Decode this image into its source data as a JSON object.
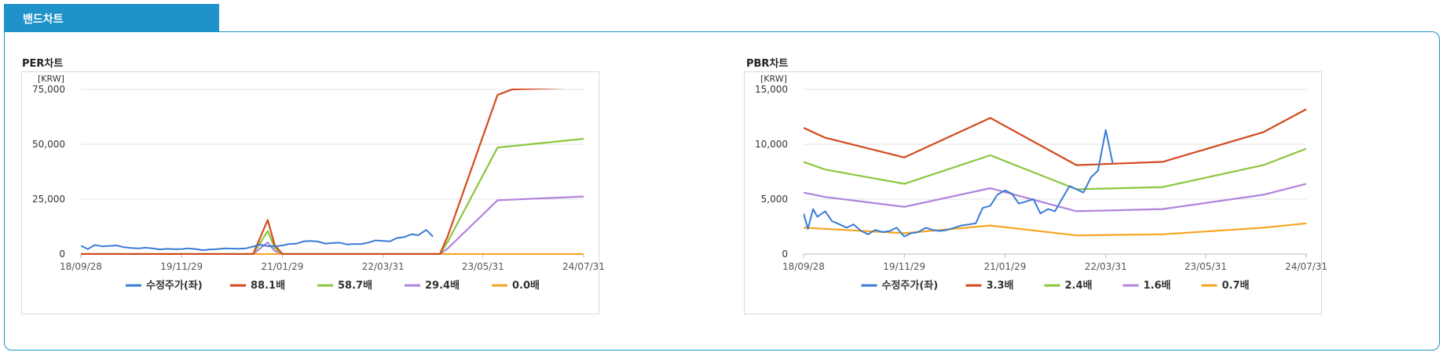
{
  "section": {
    "tab_label": "밴드차트"
  },
  "charts": [
    {
      "title": "PER차트",
      "unit": "[KRW]",
      "chart_data": {
        "type": "line",
        "title": "PER차트",
        "ylabel": "[KRW]",
        "ylim": [
          0,
          75000
        ],
        "yticks": [
          "0",
          "25,000",
          "50,000",
          "75,000"
        ],
        "ytick_values": [
          0,
          25000,
          50000,
          75000
        ],
        "xlim": [
          2018.74,
          2024.58
        ],
        "xticks": [
          "18/09/28",
          "19/11/29",
          "21/01/29",
          "22/03/31",
          "23/05/31",
          "24/07/31"
        ],
        "xtick_values": [
          2018.74,
          2019.91,
          2021.08,
          2022.25,
          2023.41,
          2024.58
        ],
        "grid": true,
        "legend_position": "bottom",
        "series": [
          {
            "name": "수정주가(좌)",
            "color": "#3a7bd5",
            "x": [
              2018.74,
              2018.82,
              2018.9,
              2018.99,
              2019.07,
              2019.16,
              2019.24,
              2019.32,
              2019.41,
              2019.49,
              2019.57,
              2019.66,
              2019.74,
              2019.82,
              2019.91,
              2019.99,
              2020.07,
              2020.16,
              2020.24,
              2020.32,
              2020.41,
              2020.49,
              2020.57,
              2020.66,
              2020.74,
              2020.82,
              2020.91,
              2020.99,
              2021.08,
              2021.16,
              2021.24,
              2021.33,
              2021.41,
              2021.49,
              2021.58,
              2021.66,
              2021.74,
              2021.83,
              2021.91,
              2021.99,
              2022.08,
              2022.16,
              2022.25,
              2022.33,
              2022.41,
              2022.5,
              2022.58,
              2022.66,
              2022.75,
              2022.83,
              2022.91
            ],
            "values": [
              3800,
              2300,
              4100,
              3500,
              3700,
              3900,
              3100,
              2800,
              2600,
              2900,
              2600,
              2100,
              2400,
              2200,
              2300,
              2600,
              2300,
              1800,
              2100,
              2200,
              2600,
              2500,
              2400,
              2600,
              3400,
              4300,
              3600,
              3500,
              3900,
              4600,
              4700,
              5800,
              6000,
              5700,
              4800,
              5000,
              5200,
              4400,
              4600,
              4500,
              5200,
              6200,
              6000,
              5800,
              7300,
              7800,
              9000,
              8600,
              11000,
              8000,
              null
            ]
          },
          {
            "name": "88.1배",
            "color": "#d34a1f",
            "x": [
              2018.74,
              2020.74,
              2020.91,
              2020.99,
              2021.08,
              2022.91,
              2023.0,
              2023.58,
              2023.75,
              2024.58
            ],
            "values": [
              0,
              0,
              15500,
              4200,
              0,
              0,
              8000,
              72500,
              75000,
              76000
            ]
          },
          {
            "name": "58.7배",
            "color": "#8cc63f",
            "x": [
              2018.74,
              2020.74,
              2020.91,
              2020.99,
              2021.08,
              2022.91,
              2023.0,
              2023.58,
              2024.58
            ],
            "values": [
              0,
              0,
              10500,
              2800,
              0,
              0,
              5500,
              48500,
              52500
            ]
          },
          {
            "name": "29.4배",
            "color": "#b083dc",
            "x": [
              2018.74,
              2020.74,
              2020.91,
              2020.99,
              2021.08,
              2022.91,
              2023.0,
              2023.58,
              2024.58
            ],
            "values": [
              0,
              0,
              5300,
              1400,
              0,
              0,
              2500,
              24500,
              26200
            ]
          },
          {
            "name": "0.0배",
            "color": "#f5a623",
            "x": [
              2018.74,
              2024.58
            ],
            "values": [
              0,
              0
            ]
          }
        ]
      }
    },
    {
      "title": "PBR차트",
      "unit": "[KRW]",
      "chart_data": {
        "type": "line",
        "title": "PBR차트",
        "ylabel": "[KRW]",
        "ylim": [
          0,
          15000
        ],
        "yticks": [
          "0",
          "5,000",
          "10,000",
          "15,000"
        ],
        "ytick_values": [
          0,
          5000,
          10000,
          15000
        ],
        "xlim": [
          2018.74,
          2024.58
        ],
        "xticks": [
          "18/09/28",
          "19/11/29",
          "21/01/29",
          "22/03/31",
          "23/05/31",
          "24/07/31"
        ],
        "xtick_values": [
          2018.74,
          2019.91,
          2021.08,
          2022.25,
          2023.41,
          2024.58
        ],
        "grid": true,
        "legend_position": "bottom",
        "series": [
          {
            "name": "수정주가(좌)",
            "color": "#3a7bd5",
            "x": [
              2018.74,
              2018.79,
              2018.85,
              2018.9,
              2018.99,
              2019.07,
              2019.16,
              2019.24,
              2019.32,
              2019.41,
              2019.49,
              2019.57,
              2019.66,
              2019.74,
              2019.82,
              2019.91,
              2019.99,
              2020.07,
              2020.16,
              2020.24,
              2020.32,
              2020.41,
              2020.49,
              2020.57,
              2020.66,
              2020.74,
              2020.82,
              2020.91,
              2020.99,
              2021.08,
              2021.16,
              2021.24,
              2021.33,
              2021.41,
              2021.49,
              2021.58,
              2021.66,
              2021.74,
              2021.83,
              2021.91,
              2021.99,
              2022.08,
              2022.16,
              2022.25,
              2022.33,
              2022.41,
              2022.5,
              2022.58,
              2022.66,
              2022.75,
              2022.83,
              2022.91
            ],
            "values": [
              3700,
              2300,
              4100,
              3400,
              3900,
              3000,
              2700,
              2400,
              2700,
              2100,
              1800,
              2200,
              2000,
              2100,
              2400,
              1600,
              1900,
              2000,
              2400,
              2200,
              2100,
              2200,
              2400,
              2600,
              2700,
              2800,
              4200,
              4400,
              5400,
              5800,
              5500,
              4600,
              4800,
              5000,
              3700,
              4100,
              3900,
              5000,
              6200,
              5900,
              5600,
              7000,
              7600,
              11300,
              8300,
              null,
              null,
              null,
              null,
              null,
              null,
              null
            ]
          },
          {
            "name": "3.3배",
            "color": "#d34a1f",
            "x": [
              2018.74,
              2018.99,
              2019.91,
              2020.91,
              2021.91,
              2022.91,
              2024.08,
              2024.58
            ],
            "values": [
              11500,
              10600,
              8800,
              12400,
              8100,
              8400,
              11100,
              13200
            ]
          },
          {
            "name": "2.4배",
            "color": "#8cc63f",
            "x": [
              2018.74,
              2018.99,
              2019.91,
              2020.91,
              2021.91,
              2022.91,
              2024.08,
              2024.58
            ],
            "values": [
              8400,
              7700,
              6400,
              9000,
              5900,
              6100,
              8100,
              9600
            ]
          },
          {
            "name": "1.6배",
            "color": "#b083dc",
            "x": [
              2018.74,
              2018.99,
              2019.91,
              2020.91,
              2021.91,
              2022.91,
              2024.08,
              2024.58
            ],
            "values": [
              5600,
              5200,
              4300,
              6000,
              3900,
              4100,
              5400,
              6400
            ]
          },
          {
            "name": "0.7배",
            "color": "#f5a623",
            "x": [
              2018.74,
              2018.99,
              2019.91,
              2020.91,
              2021.91,
              2022.91,
              2024.08,
              2024.58
            ],
            "values": [
              2400,
              2300,
              1900,
              2600,
              1700,
              1800,
              2400,
              2800
            ]
          }
        ]
      }
    }
  ]
}
